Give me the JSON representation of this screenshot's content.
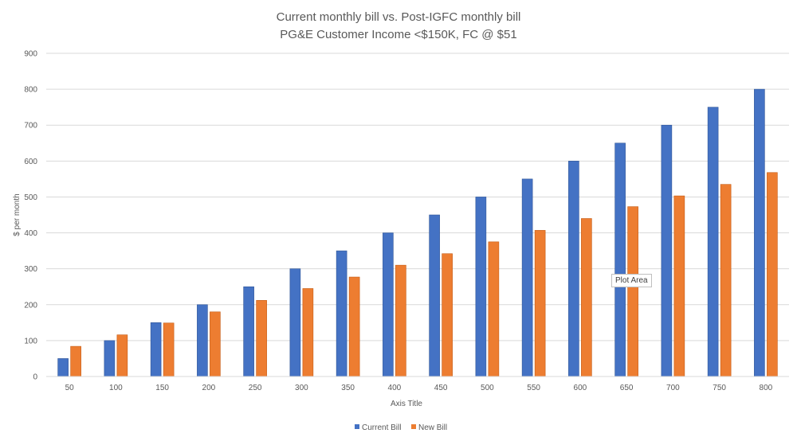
{
  "chart_data": {
    "type": "bar",
    "title": "Current monthly bill vs. Post-IGFC monthly bill",
    "subtitle": "PG&E Customer Income <$150K, FC @ $51",
    "xlabel": "Axis Title",
    "ylabel": "$ per month",
    "ylim": [
      0,
      900
    ],
    "yticks": [
      0,
      100,
      200,
      300,
      400,
      500,
      600,
      700,
      800,
      900
    ],
    "grid": true,
    "legend_position": "bottom",
    "categories": [
      "50",
      "100",
      "150",
      "200",
      "250",
      "300",
      "350",
      "400",
      "450",
      "500",
      "550",
      "600",
      "650",
      "700",
      "750",
      "800"
    ],
    "series": [
      {
        "name": "Current Bill",
        "color": "#4472C4",
        "values": [
          50,
          100,
          150,
          200,
          250,
          300,
          350,
          400,
          450,
          500,
          550,
          600,
          650,
          700,
          750,
          800
        ]
      },
      {
        "name": "New Bill",
        "color": "#ED7D31",
        "values": [
          84,
          116,
          149,
          180,
          212,
          245,
          277,
          310,
          342,
          375,
          407,
          440,
          473,
          503,
          535,
          568
        ]
      }
    ]
  },
  "tooltip": {
    "label": "Plot Area"
  }
}
